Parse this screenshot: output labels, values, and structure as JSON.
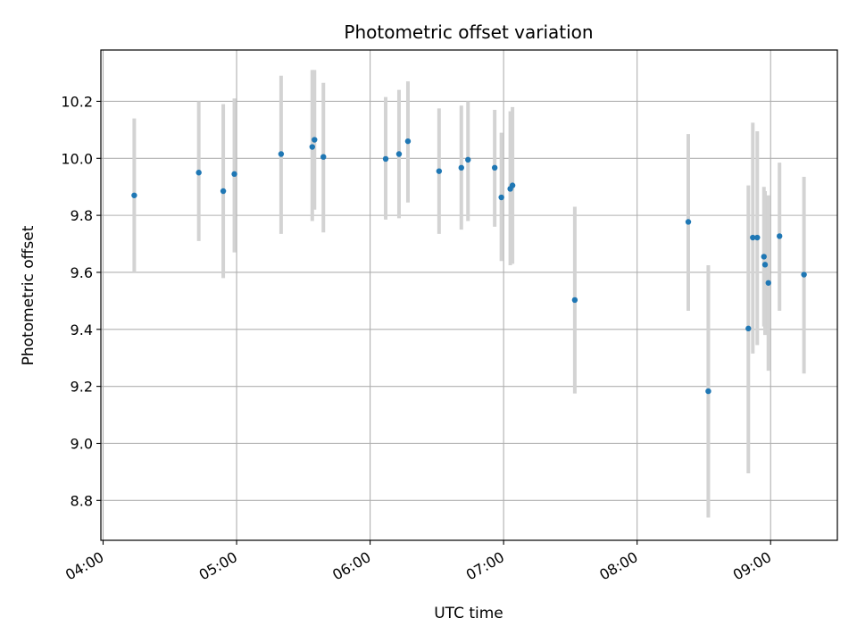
{
  "chart_data": {
    "type": "scatter",
    "title": "Photometric offset variation",
    "xlabel": "UTC time",
    "ylabel": "Photometric offset",
    "x_ticks": [
      "04:00",
      "05:00",
      "06:00",
      "07:00",
      "08:00",
      "09:00"
    ],
    "x_tick_values": [
      "04:00",
      "05:00",
      "06:00",
      "07:00",
      "08:00",
      "09:00"
    ],
    "y_ticks": [
      "8.8",
      "9.0",
      "9.2",
      "9.4",
      "9.6",
      "9.8",
      "10.0",
      "10.2"
    ],
    "y_tick_values": [
      8.8,
      9.0,
      9.2,
      9.4,
      9.6,
      9.8,
      10.0,
      10.2
    ],
    "xlim": [
      "03:59",
      "09:30"
    ],
    "ylim": [
      8.66,
      10.38
    ],
    "grid": true,
    "colors": {
      "marker": "#1f77b4",
      "errorbar": "#d3d3d3",
      "grid": "#b0b0b0"
    },
    "points": [
      {
        "x": "04:14",
        "y": 9.87,
        "lo": 9.6,
        "hi": 10.14
      },
      {
        "x": "04:43",
        "y": 9.95,
        "lo": 9.71,
        "hi": 10.2
      },
      {
        "x": "04:54",
        "y": 9.885,
        "lo": 9.58,
        "hi": 10.19
      },
      {
        "x": "04:59",
        "y": 9.945,
        "lo": 9.67,
        "hi": 10.21
      },
      {
        "x": "05:20",
        "y": 10.015,
        "lo": 9.735,
        "hi": 10.29
      },
      {
        "x": "05:34",
        "y": 10.04,
        "lo": 9.78,
        "hi": 10.31
      },
      {
        "x": "05:35",
        "y": 10.065,
        "lo": 9.82,
        "hi": 10.31
      },
      {
        "x": "05:39",
        "y": 10.005,
        "lo": 9.74,
        "hi": 10.265
      },
      {
        "x": "06:07",
        "y": 9.998,
        "lo": 9.785,
        "hi": 10.215
      },
      {
        "x": "06:13",
        "y": 10.015,
        "lo": 9.79,
        "hi": 10.24
      },
      {
        "x": "06:17",
        "y": 10.06,
        "lo": 9.845,
        "hi": 10.27
      },
      {
        "x": "06:31",
        "y": 9.955,
        "lo": 9.735,
        "hi": 10.175
      },
      {
        "x": "06:41",
        "y": 9.967,
        "lo": 9.75,
        "hi": 10.185
      },
      {
        "x": "06:44",
        "y": 9.995,
        "lo": 9.78,
        "hi": 10.2
      },
      {
        "x": "06:56",
        "y": 9.967,
        "lo": 9.76,
        "hi": 10.17
      },
      {
        "x": "06:59",
        "y": 9.863,
        "lo": 9.64,
        "hi": 10.09
      },
      {
        "x": "07:03",
        "y": 9.893,
        "lo": 9.625,
        "hi": 10.165
      },
      {
        "x": "07:04",
        "y": 9.905,
        "lo": 9.63,
        "hi": 10.18
      },
      {
        "x": "07:32",
        "y": 9.503,
        "lo": 9.175,
        "hi": 9.83
      },
      {
        "x": "08:23",
        "y": 9.777,
        "lo": 9.465,
        "hi": 10.085
      },
      {
        "x": "08:32",
        "y": 9.183,
        "lo": 8.74,
        "hi": 9.625
      },
      {
        "x": "08:50",
        "y": 9.403,
        "lo": 8.895,
        "hi": 9.905
      },
      {
        "x": "08:52",
        "y": 9.722,
        "lo": 9.315,
        "hi": 10.125
      },
      {
        "x": "08:54",
        "y": 9.722,
        "lo": 9.345,
        "hi": 10.095
      },
      {
        "x": "08:57",
        "y": 9.655,
        "lo": 9.41,
        "hi": 9.9
      },
      {
        "x": "08:57.5",
        "y": 9.627,
        "lo": 9.38,
        "hi": 9.885
      },
      {
        "x": "08:59",
        "y": 9.563,
        "lo": 9.255,
        "hi": 9.87
      },
      {
        "x": "09:04",
        "y": 9.727,
        "lo": 9.465,
        "hi": 9.985
      },
      {
        "x": "09:15",
        "y": 9.592,
        "lo": 9.245,
        "hi": 9.935
      }
    ]
  }
}
